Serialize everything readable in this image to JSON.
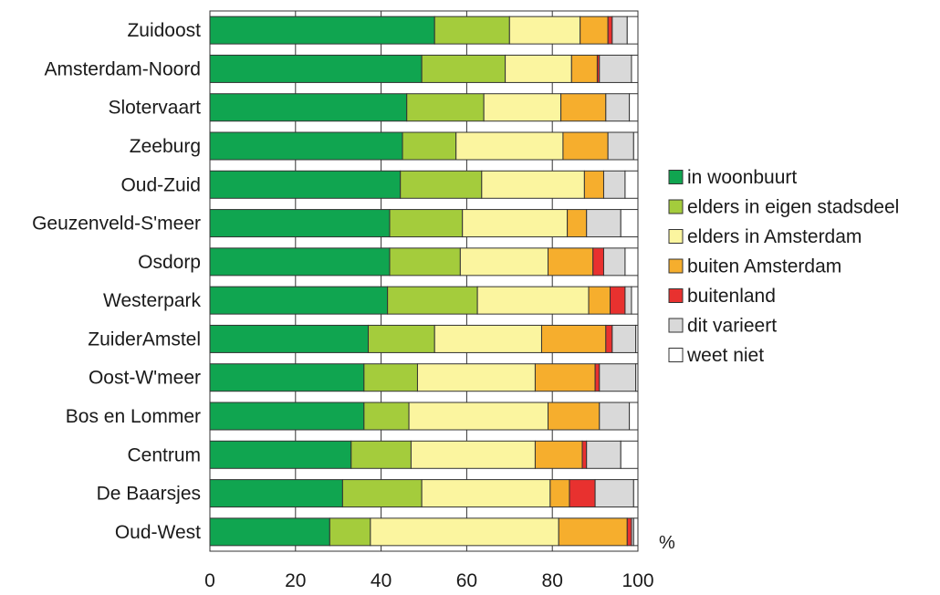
{
  "chart_data": {
    "type": "bar",
    "orientation": "horizontal",
    "stacked": true,
    "xlim": [
      0,
      100
    ],
    "xticks": [
      0,
      20,
      40,
      60,
      80,
      100
    ],
    "unit": "%",
    "grid": "vertical",
    "legend_position": "right",
    "categories": [
      "Zuidoost",
      "Amsterdam-Noord",
      "Slotervaart",
      "Zeeburg",
      "Oud-Zuid",
      "Geuzenveld-S'meer",
      "Osdorp",
      "Westerpark",
      "ZuiderAmstel",
      "Oost-W'meer",
      "Bos en Lommer",
      "Centrum",
      "De Baarsjes",
      "Oud-West"
    ],
    "series": [
      {
        "name": "in woonbuurt",
        "color": "#10a550",
        "values": [
          52.5,
          49.5,
          46,
          45,
          44.5,
          42,
          42,
          41.5,
          37,
          36,
          36,
          33,
          31,
          28
        ]
      },
      {
        "name": "elders in eigen stadsdeel",
        "color": "#a4cc3c",
        "values": [
          17.5,
          19.5,
          18,
          12.5,
          19,
          17,
          16.5,
          21,
          15.5,
          12.5,
          10.5,
          14,
          18.5,
          9.5
        ]
      },
      {
        "name": "elders in Amsterdam",
        "color": "#fbf59f",
        "values": [
          16.5,
          15.5,
          18,
          25,
          24,
          24.5,
          20.5,
          26,
          25,
          27.5,
          32.5,
          29,
          30,
          44
        ]
      },
      {
        "name": "buiten Amsterdam",
        "color": "#f6ae2d",
        "values": [
          6.5,
          6,
          10.5,
          10.5,
          4.5,
          4.5,
          10.5,
          5,
          15,
          14,
          12,
          11,
          4.5,
          16
        ]
      },
      {
        "name": "buitenland",
        "color": "#e8312f",
        "values": [
          1,
          0.5,
          0,
          0,
          0,
          0,
          2.5,
          3.5,
          1.5,
          1,
          0,
          1,
          6,
          1
        ]
      },
      {
        "name": "dit varieert",
        "color": "#d9d9d9",
        "values": [
          3.5,
          7.5,
          5.5,
          6,
          5,
          8,
          5,
          1.5,
          5.5,
          8.5,
          7,
          8,
          9,
          0.5
        ]
      },
      {
        "name": "weet niet",
        "color": "#ffffff",
        "values": [
          2.5,
          1.5,
          2,
          1,
          3,
          4,
          3,
          1.5,
          0.5,
          0.5,
          2,
          4,
          1,
          1
        ]
      }
    ]
  }
}
